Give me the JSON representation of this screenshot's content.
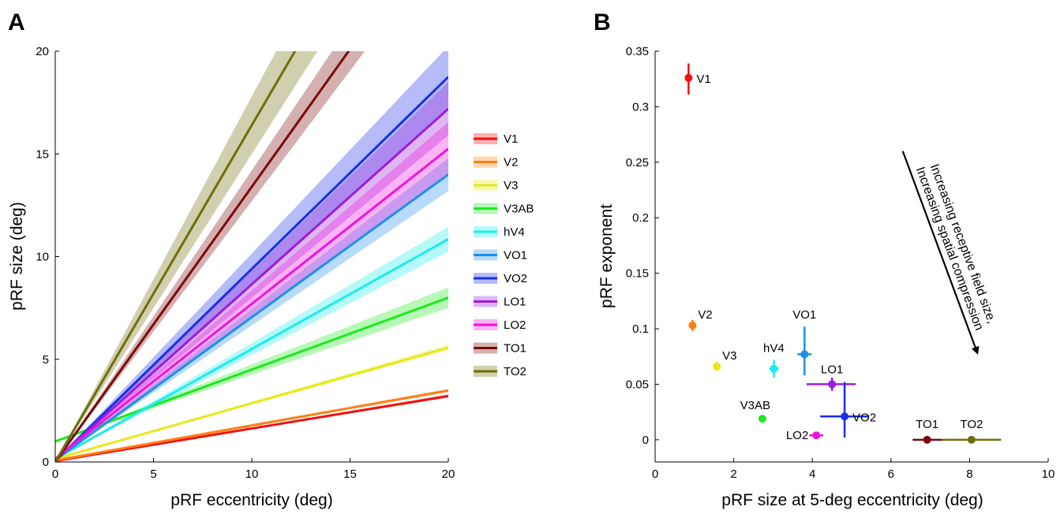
{
  "chart_data": [
    {
      "panel": "A",
      "type": "line",
      "xlabel": "pRF eccentricity (deg)",
      "ylabel": "pRF size (deg)",
      "xlim": [
        0,
        20
      ],
      "ylim": [
        0,
        20
      ],
      "xticks": [
        0,
        5,
        10,
        15,
        20
      ],
      "yticks": [
        0,
        5,
        10,
        15,
        20
      ],
      "legend_placement": "right",
      "series": [
        {
          "name": "V1",
          "color": "#ee1111",
          "intercept": 0.05,
          "slope": 0.158,
          "band_low": 0.154,
          "band_high": 0.162
        },
        {
          "name": "V2",
          "color": "#ff7f14",
          "intercept": 0.08,
          "slope": 0.17,
          "band_low": 0.166,
          "band_high": 0.174
        },
        {
          "name": "V3",
          "color": "#e8e81c",
          "intercept": 0.15,
          "slope": 0.271,
          "band_low": 0.264,
          "band_high": 0.279
        },
        {
          "name": "V3AB",
          "color": "#1ee81e",
          "intercept": 1.0,
          "slope": 0.35,
          "band_low": 0.325,
          "band_high": 0.375
        },
        {
          "name": "hV4",
          "color": "#1cecec",
          "intercept": 0.15,
          "slope": 0.535,
          "band_low": 0.505,
          "band_high": 0.565
        },
        {
          "name": "VO1",
          "color": "#1e90e8",
          "intercept": 0.1,
          "slope": 0.695,
          "band_low": 0.655,
          "band_high": 0.735
        },
        {
          "name": "VO2",
          "color": "#1a2ee6",
          "intercept": 0.05,
          "slope": 0.935,
          "band_low": 0.86,
          "band_high": 1.01
        },
        {
          "name": "LO1",
          "color": "#9a1cdc",
          "intercept": 0.1,
          "slope": 0.855,
          "band_low": 0.79,
          "band_high": 0.92
        },
        {
          "name": "LO2",
          "color": "#ee14dc",
          "intercept": 0.15,
          "slope": 0.755,
          "band_low": 0.69,
          "band_high": 0.82
        },
        {
          "name": "TO1",
          "color": "#7a0a0a",
          "intercept": 0.0,
          "slope": 1.34,
          "band_low": 1.27,
          "band_high": 1.42
        },
        {
          "name": "TO2",
          "color": "#6e6e0a",
          "intercept": 0.0,
          "slope": 1.64,
          "band_low": 1.5,
          "band_high": 1.78
        }
      ]
    },
    {
      "panel": "B",
      "type": "scatter",
      "xlabel": "pRF size at 5-deg eccentricity (deg)",
      "ylabel": "pRF exponent",
      "xlim": [
        0,
        10
      ],
      "ylim": [
        -0.02,
        0.35
      ],
      "xticks": [
        0,
        2,
        4,
        6,
        8,
        10
      ],
      "yticks": [
        0,
        0.05,
        0.1,
        0.15,
        0.2,
        0.25,
        0.3,
        0.35
      ],
      "ytick_labels": [
        "0",
        "0.05",
        "0.1",
        "0.15",
        "0.2",
        "0.25",
        "0.3",
        "0.35"
      ],
      "points": [
        {
          "name": "V1",
          "color": "#ee1111",
          "x": 0.85,
          "y": 0.326,
          "xerr": [
            0.85,
            0.85
          ],
          "yerr": [
            0.311,
            0.339
          ],
          "label_pos": "right"
        },
        {
          "name": "V2",
          "color": "#ff7f14",
          "x": 0.95,
          "y": 0.103,
          "xerr": [
            0.9,
            1.0
          ],
          "yerr": [
            0.098,
            0.108
          ],
          "label_pos": "above-right"
        },
        {
          "name": "V3",
          "color": "#e8e81c",
          "x": 1.57,
          "y": 0.066,
          "xerr": [
            1.52,
            1.62
          ],
          "yerr": [
            0.062,
            0.07
          ],
          "label_pos": "above-right"
        },
        {
          "name": "V3AB",
          "color": "#1ee81e",
          "x": 2.73,
          "y": 0.019,
          "xerr": [
            2.68,
            2.78
          ],
          "yerr": [
            0.016,
            0.022
          ],
          "label_pos": "above-left"
        },
        {
          "name": "hV4",
          "color": "#1cecec",
          "x": 3.02,
          "y": 0.064,
          "xerr": [
            2.9,
            3.14
          ],
          "yerr": [
            0.056,
            0.072
          ],
          "label_pos": "above"
        },
        {
          "name": "VO1",
          "color": "#1e90e8",
          "x": 3.8,
          "y": 0.077,
          "xerr": [
            3.62,
            3.98
          ],
          "yerr": [
            0.058,
            0.102
          ],
          "label_pos": "above"
        },
        {
          "name": "LO1",
          "color": "#9a1cdc",
          "x": 4.5,
          "y": 0.05,
          "xerr": [
            3.85,
            5.1
          ],
          "yerr": [
            0.044,
            0.056
          ],
          "label_pos": "above"
        },
        {
          "name": "LO2",
          "color": "#ee14dc",
          "x": 4.1,
          "y": 0.004,
          "xerr": [
            3.92,
            4.28
          ],
          "yerr": [
            0.001,
            0.007
          ],
          "label_pos": "left"
        },
        {
          "name": "VO2",
          "color": "#1a2ee6",
          "x": 4.82,
          "y": 0.021,
          "xerr": [
            4.2,
            5.44
          ],
          "yerr": [
            0.002,
            0.052
          ],
          "label_pos": "right"
        },
        {
          "name": "TO1",
          "color": "#7a0a0a",
          "x": 6.92,
          "y": 0.0,
          "xerr": [
            6.55,
            7.3
          ],
          "yerr": [
            0.0,
            0.0
          ],
          "label_pos": "above"
        },
        {
          "name": "TO2",
          "color": "#6e6e0a",
          "x": 8.05,
          "y": 0.0,
          "xerr": [
            7.3,
            8.8
          ],
          "yerr": [
            0.0,
            0.0
          ],
          "label_pos": "above"
        }
      ],
      "annotation": {
        "line1": "Increasing receptive field size,",
        "line2": "Increasing spatial compression",
        "arrow_from": [
          6.3,
          0.26
        ],
        "arrow_to": [
          8.2,
          0.078
        ]
      }
    }
  ],
  "panel_labels": {
    "a": "A",
    "b": "B"
  }
}
